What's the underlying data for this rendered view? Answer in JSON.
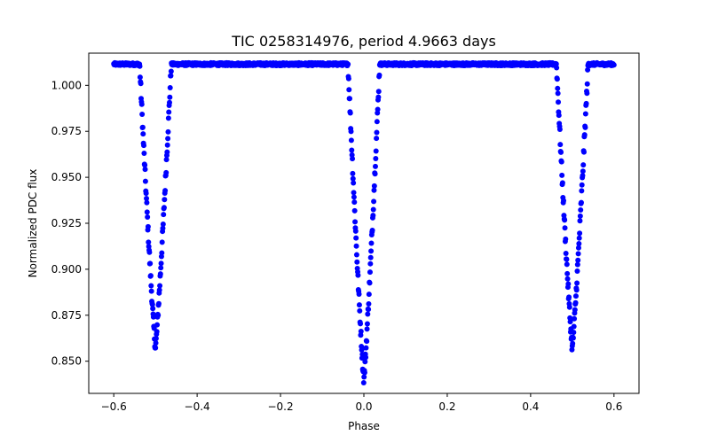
{
  "chart_data": {
    "type": "scatter",
    "title": "TIC 0258314976, period 4.9663 days",
    "xlabel": "Phase",
    "ylabel": "Normalized PDC flux",
    "xlim": [
      -0.66,
      0.66
    ],
    "ylim": [
      0.8325,
      1.0175
    ],
    "grid": false,
    "xticks": [
      -0.6,
      -0.4,
      -0.2,
      0.0,
      0.2,
      0.4,
      0.6
    ],
    "xtick_labels": [
      "−0.6",
      "−0.4",
      "−0.2",
      "0.0",
      "0.2",
      "0.4",
      "0.6"
    ],
    "yticks": [
      0.85,
      0.875,
      0.9,
      0.925,
      0.95,
      0.975,
      1.0
    ],
    "ytick_labels": [
      "0.850",
      "0.875",
      "0.900",
      "0.925",
      "0.950",
      "0.975",
      "1.000"
    ],
    "series": [
      {
        "name": "Normalized PDC flux",
        "color": "#0000ff",
        "baseline_flux": 1.0115,
        "eclipses": [
          {
            "label": "primary eclipse",
            "center_phase": 0.0,
            "min_flux": 0.84,
            "half_width": 0.038
          },
          {
            "label": "secondary eclipse",
            "center_phase": -0.5,
            "min_flux": 0.857,
            "half_width": 0.038
          },
          {
            "label": "secondary eclipse (wrapped)",
            "center_phase": 0.5,
            "min_flux": 0.857,
            "half_width": 0.038
          }
        ],
        "phase_range": [
          -0.6,
          0.6
        ]
      }
    ]
  }
}
